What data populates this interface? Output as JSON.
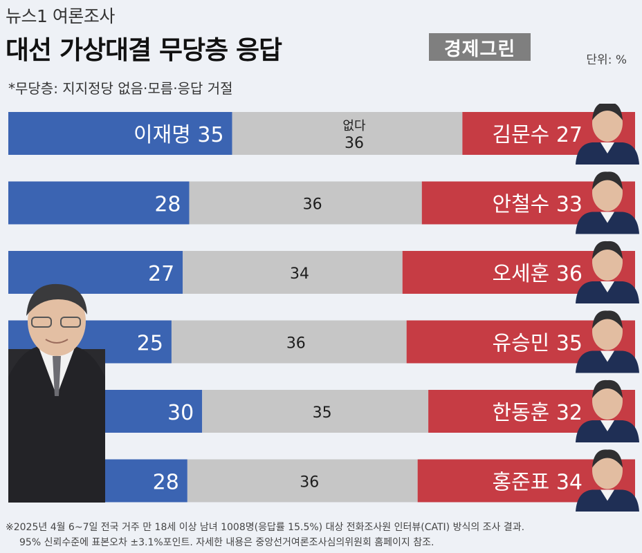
{
  "header": {
    "kicker": "뉴스1 여론조사",
    "title": "대선 가상대결 무당층 응답",
    "note": "*무당층: 지지정당 없음·모름·응답 거절",
    "logo": "경제그린",
    "unit": "단위: %"
  },
  "colors": {
    "blue": "#3b64b2",
    "gray": "#c6c6c6",
    "red": "#c63c44",
    "background": "#eef1f6"
  },
  "chart_data": {
    "type": "bar",
    "orientation": "horizontal-stacked-100",
    "categories": [
      "이재명 vs 김문수",
      "이재명 vs 안철수",
      "이재명 vs 오세훈",
      "이재명 vs 유승민",
      "이재명 vs 한동훈",
      "이재명 vs 홍준표"
    ],
    "series": [
      {
        "name": "이재명",
        "values": [
          35,
          28,
          27,
          25,
          30,
          28
        ]
      },
      {
        "name": "없다",
        "values": [
          36,
          36,
          34,
          36,
          35,
          36
        ]
      },
      {
        "name": "",
        "values": [
          27,
          33,
          36,
          35,
          32,
          34
        ]
      }
    ],
    "rows": [
      {
        "left_label": "이재명 35",
        "mid_label": "36",
        "mid_header": "없다",
        "right_label": "김문수 27"
      },
      {
        "left_label": "28",
        "mid_label": "36",
        "mid_header": "",
        "right_label": "안철수 33"
      },
      {
        "left_label": "27",
        "mid_label": "34",
        "mid_header": "",
        "right_label": "오세훈 36"
      },
      {
        "left_label": "25",
        "mid_label": "36",
        "mid_header": "",
        "right_label": "유승민 35"
      },
      {
        "left_label": "30",
        "mid_label": "35",
        "mid_header": "",
        "right_label": "한동훈 32"
      },
      {
        "left_label": "28",
        "mid_label": "36",
        "mid_header": "",
        "right_label": "홍준표 34"
      }
    ]
  },
  "footnote": {
    "line1": "※2025년 4월 6~7일 전국 거주 만 18세 이상 남녀 1008명(응답률 15.5%) 대상 전화조사원 인터뷰(CATI) 방식의 조사 결과.",
    "line2": "95% 신뢰수준에 표본오차 ±3.1%포인트. 자세한 내용은 중앙선거여론조사심의위원회 홈페이지 참조."
  }
}
